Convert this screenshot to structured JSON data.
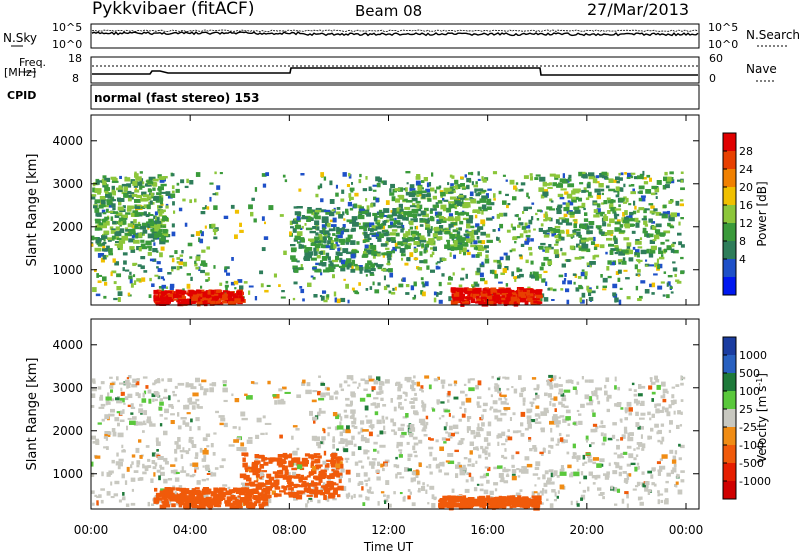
{
  "header": {
    "station": "Pykkvibaer (fitACF)",
    "beam": "Beam 08",
    "date": "27/Mar/2013"
  },
  "noise_panel": {
    "left_label": "N.Sky",
    "left_ticks": [
      "10^5",
      "10^0"
    ],
    "right_label": "N.Search",
    "right_ticks": [
      "10^5",
      "10^0"
    ]
  },
  "freq_panel": {
    "left_label_1": "Freq.",
    "left_label_2": "[MHz]",
    "left_ticks": [
      "18",
      "8"
    ],
    "right_label": "Nave",
    "right_ticks": [
      "60",
      "0"
    ]
  },
  "cpid": {
    "label": "CPID",
    "text": "normal (fast stereo) 153"
  },
  "colors": {
    "power_scale": [
      "#0018f0",
      "#1e50c8",
      "#2e7d5a",
      "#3a9a3a",
      "#8cc63a",
      "#f0c000",
      "#f08000",
      "#e84000",
      "#e00000"
    ],
    "velocity_scale": [
      "#1a3ca0",
      "#2860c0",
      "#1e7a3a",
      "#5ac83c",
      "#c8c8c0",
      "#f08c14",
      "#f05a0a",
      "#e61e00",
      "#d00000"
    ]
  },
  "chart_data": [
    {
      "type": "heatmap",
      "title": "",
      "xlabel": "Time UT",
      "ylabel": "Slant Range [km]",
      "x_ticks": [
        "00:00",
        "04:00",
        "08:00",
        "12:00",
        "16:00",
        "20:00",
        "00:00"
      ],
      "y_ticks": [
        "1000",
        "2000",
        "3000",
        "4000"
      ],
      "ylim": [
        180,
        4600
      ],
      "colorbar": {
        "label": "Power [dB]",
        "ticks": [
          "28",
          "24",
          "20",
          "16",
          "12",
          "8",
          "4"
        ],
        "range": [
          0,
          30
        ]
      },
      "x_hours": [
        0,
        1,
        2,
        3,
        4,
        5,
        6,
        7,
        8,
        9,
        10,
        11,
        12,
        13,
        14,
        15,
        16,
        17,
        18,
        19,
        20,
        21,
        22,
        23
      ],
      "y_range_km": [
        300,
        3300
      ],
      "summary_features": [
        {
          "hours": [
            2.5,
            6.0
          ],
          "range_km": [
            250,
            550
          ],
          "power_db": 28
        },
        {
          "hours": [
            14.5,
            18.0
          ],
          "range_km": [
            250,
            600
          ],
          "power_db": 28
        },
        {
          "hours": [
            0.0,
            3.0
          ],
          "range_km": [
            1500,
            3200
          ],
          "power_db": 12
        },
        {
          "hours": [
            8.0,
            12.0
          ],
          "range_km": [
            1000,
            2500
          ],
          "power_db": 10
        },
        {
          "hours": [
            12.0,
            16.0
          ],
          "range_km": [
            1500,
            3000
          ],
          "power_db": 12
        },
        {
          "hours": [
            18.0,
            23.5
          ],
          "range_km": [
            1200,
            3300
          ],
          "power_db": 12
        }
      ]
    },
    {
      "type": "heatmap",
      "title": "",
      "xlabel": "Time UT",
      "ylabel": "Slant Range [km]",
      "x_ticks": [
        "00:00",
        "04:00",
        "08:00",
        "12:00",
        "16:00",
        "20:00",
        "00:00"
      ],
      "y_ticks": [
        "1000",
        "2000",
        "3000",
        "4000"
      ],
      "ylim": [
        180,
        4600
      ],
      "colorbar": {
        "label": "Velocity [m s",
        "label_sup": "-1",
        "label_end": "]",
        "ticks": [
          "1000",
          "500",
          "100",
          "25",
          "-25",
          "-100",
          "-500",
          "-1000"
        ],
        "range": [
          -1000,
          1000
        ]
      },
      "summary_features": [
        {
          "hours": [
            2.5,
            7.0
          ],
          "range_km": [
            250,
            700
          ],
          "velocity_ms": -200
        },
        {
          "hours": [
            6.0,
            10.0
          ],
          "range_km": [
            500,
            1500
          ],
          "velocity_ms": -300
        },
        {
          "hours": [
            14.0,
            18.0
          ],
          "range_km": [
            250,
            500
          ],
          "velocity_ms": -150
        },
        {
          "hours": [
            0.0,
            23.5
          ],
          "range_km": [
            1000,
            3300
          ],
          "velocity_ms": 0
        }
      ]
    }
  ]
}
